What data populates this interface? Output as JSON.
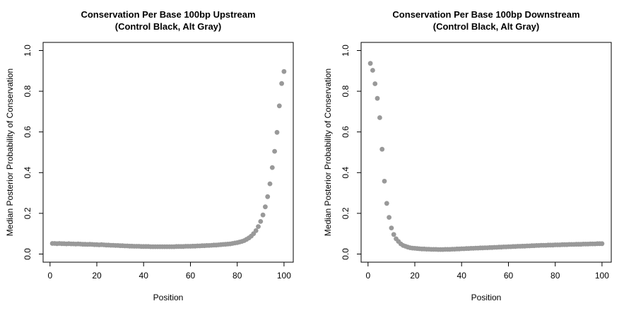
{
  "figure": {
    "background": "#ffffff",
    "text_color": "#000000",
    "box_color": "#000000",
    "point_color": "#999999"
  },
  "chart_data": [
    {
      "type": "scatter",
      "panel": "upstream",
      "title_line1": "Conservation Per Base 100bp Upstream",
      "title_line2": "(Control Black, Alt Gray)",
      "xlabel": "Position",
      "ylabel": "Median Posterior Probability of Conservation",
      "xlim": [
        1,
        100
      ],
      "ylim": [
        0,
        1
      ],
      "xticks": [
        0,
        20,
        40,
        60,
        80,
        100
      ],
      "ytick_labels": [
        "0.0",
        "0.2",
        "0.4",
        "0.6",
        "0.8",
        "1.0"
      ],
      "grid": false,
      "series": [
        {
          "name": "Alt",
          "color": "#999999",
          "positions": [
            1,
            2,
            3,
            4,
            5,
            6,
            7,
            8,
            9,
            10,
            11,
            12,
            13,
            14,
            15,
            16,
            17,
            18,
            19,
            20,
            21,
            22,
            23,
            24,
            25,
            26,
            27,
            28,
            29,
            30,
            31,
            32,
            33,
            34,
            35,
            36,
            37,
            38,
            39,
            40,
            41,
            42,
            43,
            44,
            45,
            46,
            47,
            48,
            49,
            50,
            51,
            52,
            53,
            54,
            55,
            56,
            57,
            58,
            59,
            60,
            61,
            62,
            63,
            64,
            65,
            66,
            67,
            68,
            69,
            70,
            71,
            72,
            73,
            74,
            75,
            76,
            77,
            78,
            79,
            80,
            81,
            82,
            83,
            84,
            85,
            86,
            87,
            88,
            89,
            90,
            91,
            92,
            93,
            94,
            95,
            96,
            97,
            98,
            99,
            100
          ],
          "values": [
            0.052,
            0.052,
            0.051,
            0.052,
            0.051,
            0.051,
            0.05,
            0.051,
            0.05,
            0.05,
            0.049,
            0.05,
            0.049,
            0.048,
            0.048,
            0.047,
            0.048,
            0.047,
            0.046,
            0.046,
            0.045,
            0.046,
            0.045,
            0.044,
            0.044,
            0.043,
            0.043,
            0.042,
            0.042,
            0.041,
            0.041,
            0.04,
            0.04,
            0.039,
            0.039,
            0.038,
            0.038,
            0.038,
            0.037,
            0.037,
            0.037,
            0.037,
            0.036,
            0.036,
            0.036,
            0.036,
            0.036,
            0.036,
            0.036,
            0.036,
            0.036,
            0.036,
            0.036,
            0.037,
            0.037,
            0.037,
            0.037,
            0.038,
            0.038,
            0.038,
            0.039,
            0.039,
            0.04,
            0.04,
            0.041,
            0.041,
            0.042,
            0.042,
            0.043,
            0.044,
            0.044,
            0.045,
            0.046,
            0.047,
            0.048,
            0.049,
            0.05,
            0.052,
            0.054,
            0.056,
            0.059,
            0.062,
            0.066,
            0.072,
            0.079,
            0.088,
            0.1,
            0.115,
            0.135,
            0.16,
            0.192,
            0.232,
            0.282,
            0.345,
            0.425,
            0.505,
            0.598,
            0.728,
            0.838,
            0.897
          ]
        }
      ]
    },
    {
      "type": "scatter",
      "panel": "downstream",
      "title_line1": "Conservation Per Base 100bp Downstream",
      "title_line2": "(Control Black, Alt Gray)",
      "xlabel": "Position",
      "ylabel": "Median Posterior Probability of Conservation",
      "xlim": [
        1,
        100
      ],
      "ylim": [
        0,
        1
      ],
      "xticks": [
        0,
        20,
        40,
        60,
        80,
        100
      ],
      "ytick_labels": [
        "0.0",
        "0.2",
        "0.4",
        "0.6",
        "0.8",
        "1.0"
      ],
      "grid": false,
      "series": [
        {
          "name": "Alt",
          "color": "#999999",
          "positions": [
            1,
            2,
            3,
            4,
            5,
            6,
            7,
            8,
            9,
            10,
            11,
            12,
            13,
            14,
            15,
            16,
            17,
            18,
            19,
            20,
            21,
            22,
            23,
            24,
            25,
            26,
            27,
            28,
            29,
            30,
            31,
            32,
            33,
            34,
            35,
            36,
            37,
            38,
            39,
            40,
            41,
            42,
            43,
            44,
            45,
            46,
            47,
            48,
            49,
            50,
            51,
            52,
            53,
            54,
            55,
            56,
            57,
            58,
            59,
            60,
            61,
            62,
            63,
            64,
            65,
            66,
            67,
            68,
            69,
            70,
            71,
            72,
            73,
            74,
            75,
            76,
            77,
            78,
            79,
            80,
            81,
            82,
            83,
            84,
            85,
            86,
            87,
            88,
            89,
            90,
            91,
            92,
            93,
            94,
            95,
            96,
            97,
            98,
            99,
            100
          ],
          "values": [
            0.937,
            0.903,
            0.837,
            0.765,
            0.67,
            0.515,
            0.358,
            0.249,
            0.18,
            0.128,
            0.096,
            0.075,
            0.062,
            0.05,
            0.042,
            0.038,
            0.034,
            0.031,
            0.029,
            0.028,
            0.027,
            0.026,
            0.025,
            0.025,
            0.024,
            0.024,
            0.023,
            0.023,
            0.023,
            0.022,
            0.022,
            0.022,
            0.023,
            0.023,
            0.023,
            0.024,
            0.024,
            0.025,
            0.025,
            0.026,
            0.026,
            0.027,
            0.027,
            0.028,
            0.028,
            0.029,
            0.029,
            0.03,
            0.03,
            0.031,
            0.031,
            0.032,
            0.032,
            0.033,
            0.033,
            0.034,
            0.034,
            0.035,
            0.035,
            0.036,
            0.036,
            0.037,
            0.037,
            0.038,
            0.038,
            0.039,
            0.039,
            0.04,
            0.04,
            0.041,
            0.041,
            0.042,
            0.042,
            0.043,
            0.043,
            0.043,
            0.044,
            0.044,
            0.044,
            0.045,
            0.045,
            0.045,
            0.046,
            0.046,
            0.046,
            0.047,
            0.047,
            0.047,
            0.048,
            0.048,
            0.048,
            0.049,
            0.049,
            0.049,
            0.05,
            0.05,
            0.05,
            0.051,
            0.051,
            0.051
          ]
        }
      ]
    }
  ]
}
